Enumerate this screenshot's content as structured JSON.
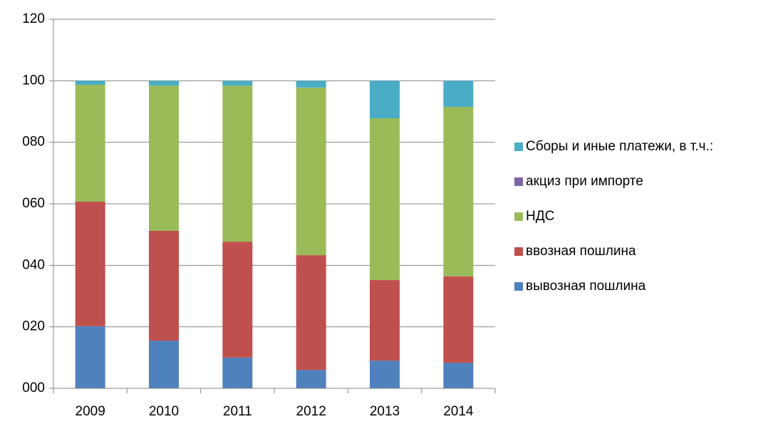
{
  "chart_data": {
    "type": "stacked_bar",
    "categories": [
      "2009",
      "2010",
      "2011",
      "2012",
      "2013",
      "2014"
    ],
    "series": [
      {
        "name": "вывозная пошлина",
        "color": "#4f81bd",
        "values": [
          20.2,
          15.5,
          10,
          6,
          9,
          8.3
        ]
      },
      {
        "name": "ввозная пошлина",
        "color": "#c0504d",
        "values": [
          40.5,
          35.7,
          37.7,
          37.3,
          26.2,
          28.1
        ]
      },
      {
        "name": "НДС",
        "color": "#9bbb59",
        "values": [
          38,
          47.2,
          50.7,
          54.5,
          52.6,
          55.1
        ]
      },
      {
        "name": "акциз при импорте",
        "color": "#8064a2",
        "values": [
          0,
          0,
          0,
          0,
          0,
          0
        ]
      },
      {
        "name": "Сборы и иные платежи, в т.ч.:",
        "color": "#4bacc6",
        "values": [
          1.3,
          1.6,
          1.6,
          2.2,
          12.2,
          8.5
        ]
      }
    ],
    "ylim": [
      0,
      120
    ],
    "yticks": [
      {
        "value": 0,
        "label": "000"
      },
      {
        "value": 20,
        "label": "020"
      },
      {
        "value": 40,
        "label": "040"
      },
      {
        "value": 60,
        "label": "060"
      },
      {
        "value": 80,
        "label": "080"
      },
      100,
      120
    ],
    "grid": true,
    "legend": "right"
  }
}
